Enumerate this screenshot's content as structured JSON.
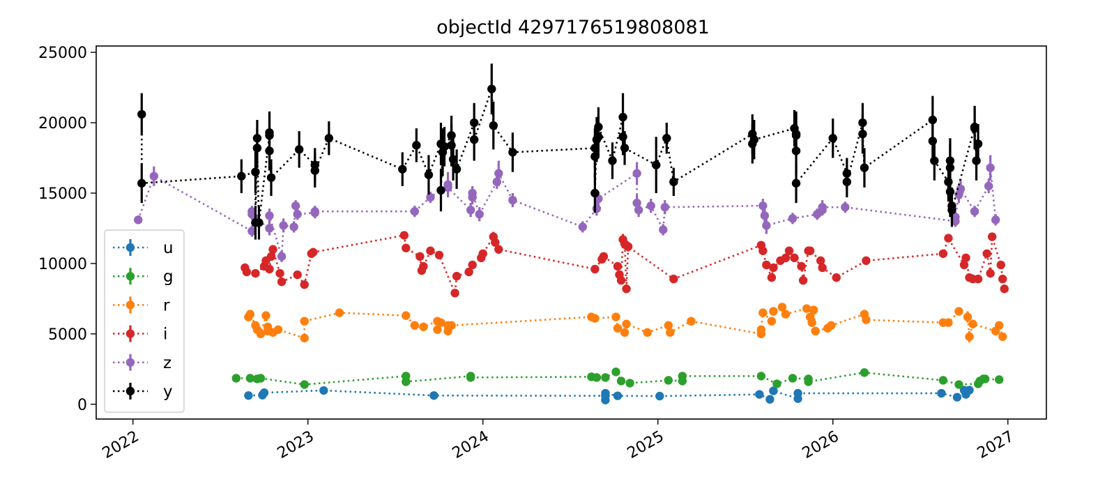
{
  "chart_data": {
    "type": "scatter",
    "title": "objectId 4297176519808081",
    "xlabel": "",
    "ylabel": "",
    "xlim": [
      2021.79,
      2027.22
    ],
    "ylim": [
      -1050,
      25450
    ],
    "grid": false,
    "legend_position": "lower-left",
    "x_ticks": [
      2022,
      2023,
      2024,
      2025,
      2026,
      2027
    ],
    "x_tick_labels": [
      "2022",
      "2023",
      "2024",
      "2025",
      "2026",
      "2027"
    ],
    "y_ticks": [
      0,
      5000,
      10000,
      15000,
      20000,
      25000
    ],
    "y_tick_labels": [
      "0",
      "5000",
      "10000",
      "15000",
      "20000",
      "25000"
    ],
    "series": [
      {
        "name": "u",
        "color": "#1f77b4",
        "x": [
          2022.66,
          2022.74,
          2022.75,
          2023.09,
          2023.72,
          2024.7,
          2024.7,
          2024.7,
          2024.77,
          2025.01,
          2025.58,
          2025.64,
          2025.66,
          2025.8,
          2025.8,
          2026.62,
          2026.71,
          2026.75,
          2026.76,
          2026.78
        ],
        "y": [
          620,
          650,
          820,
          980,
          620,
          600,
          300,
          780,
          600,
          580,
          700,
          350,
          950,
          400,
          780,
          780,
          500,
          1000,
          700,
          1000
        ],
        "err": [
          140,
          140,
          160,
          150,
          130,
          160,
          200,
          160,
          150,
          140,
          150,
          200,
          160,
          160,
          160,
          160,
          170,
          170,
          160,
          160
        ]
      },
      {
        "name": "g",
        "color": "#2ca02c",
        "x": [
          2022.59,
          2022.67,
          2022.71,
          2022.73,
          2022.98,
          2023.56,
          2023.56,
          2023.93,
          2023.93,
          2024.62,
          2024.65,
          2024.7,
          2024.76,
          2024.79,
          2024.84,
          2025.06,
          2025.14,
          2025.14,
          2025.59,
          2025.68,
          2025.77,
          2025.86,
          2025.86,
          2026.18,
          2026.63,
          2026.72,
          2026.83,
          2026.84,
          2026.86,
          2026.87,
          2026.95
        ],
        "y": [
          1850,
          1850,
          1800,
          1850,
          1400,
          2000,
          1600,
          2000,
          1900,
          1950,
          1900,
          1900,
          2300,
          1650,
          1500,
          1700,
          1650,
          2000,
          2000,
          1450,
          1850,
          1800,
          1600,
          2250,
          1700,
          1400,
          1450,
          1650,
          1800,
          1800,
          1750
        ],
        "err": [
          150,
          150,
          150,
          150,
          230,
          250,
          150,
          200,
          150,
          150,
          150,
          150,
          180,
          150,
          150,
          150,
          150,
          150,
          150,
          150,
          150,
          150,
          150,
          150,
          150,
          150,
          150,
          150,
          150,
          150,
          150
        ]
      },
      {
        "name": "r",
        "color": "#ff7f0e",
        "x": [
          2022.66,
          2022.67,
          2022.7,
          2022.71,
          2022.73,
          2022.76,
          2022.77,
          2022.77,
          2022.8,
          2022.83,
          2022.98,
          2022.98,
          2023.18,
          2023.56,
          2023.61,
          2023.66,
          2023.74,
          2023.74,
          2023.76,
          2023.8,
          2023.8,
          2023.82,
          2024.62,
          2024.64,
          2024.76,
          2024.77,
          2024.81,
          2024.82,
          2024.94,
          2025.06,
          2025.07,
          2025.19,
          2025.59,
          2025.59,
          2025.6,
          2025.65,
          2025.66,
          2025.71,
          2025.73,
          2025.85,
          2025.87,
          2025.88,
          2025.89,
          2025.9,
          2025.97,
          2025.99,
          2026.18,
          2026.19,
          2026.63,
          2026.66,
          2026.72,
          2026.77,
          2026.78,
          2026.8,
          2026.93,
          2026.95,
          2026.97
        ],
        "y": [
          6200,
          6400,
          5600,
          5300,
          5000,
          6300,
          5500,
          5200,
          5100,
          5300,
          4700,
          5900,
          6500,
          6300,
          5600,
          5500,
          5900,
          5300,
          5800,
          5200,
          5600,
          5600,
          6200,
          6100,
          6200,
          5400,
          5100,
          5700,
          5100,
          5600,
          5100,
          5900,
          5000,
          5300,
          6500,
          5900,
          6600,
          6900,
          6400,
          6800,
          6200,
          5800,
          6700,
          5200,
          5400,
          5600,
          6400,
          6000,
          5800,
          5800,
          6600,
          6200,
          4800,
          5700,
          5200,
          5600,
          4800
        ],
        "err": [
          200,
          200,
          300,
          200,
          200,
          200,
          200,
          200,
          200,
          200,
          300,
          200,
          200,
          200,
          200,
          200,
          200,
          200,
          200,
          200,
          300,
          200,
          200,
          200,
          200,
          200,
          200,
          200,
          200,
          200,
          200,
          200,
          300,
          200,
          200,
          300,
          300,
          200,
          200,
          200,
          300,
          200,
          200,
          200,
          200,
          200,
          200,
          200,
          200,
          200,
          200,
          400,
          400,
          200,
          200,
          200,
          200
        ]
      },
      {
        "name": "i",
        "color": "#d62728",
        "x": [
          2022.64,
          2022.65,
          2022.7,
          2022.75,
          2022.76,
          2022.78,
          2022.79,
          2022.8,
          2022.84,
          2022.85,
          2022.94,
          2022.98,
          2023.02,
          2023.03,
          2023.55,
          2023.56,
          2023.64,
          2023.65,
          2023.66,
          2023.7,
          2023.75,
          2023.84,
          2023.85,
          2023.92,
          2023.94,
          2023.99,
          2024.0,
          2024.06,
          2024.07,
          2024.09,
          2024.64,
          2024.68,
          2024.69,
          2024.77,
          2024.78,
          2024.79,
          2024.8,
          2024.81,
          2024.82,
          2024.83,
          2025.09,
          2025.59,
          2025.6,
          2025.62,
          2025.65,
          2025.66,
          2025.7,
          2025.73,
          2025.75,
          2025.78,
          2025.82,
          2025.83,
          2025.86,
          2025.87,
          2025.93,
          2025.94,
          2026.02,
          2026.19,
          2026.63,
          2026.66,
          2026.75,
          2026.76,
          2026.78,
          2026.8,
          2026.83,
          2026.88,
          2026.9,
          2026.91,
          2026.96,
          2026.97,
          2026.98
        ],
        "y": [
          9700,
          9400,
          9300,
          9800,
          10200,
          9600,
          10500,
          11000,
          9300,
          8700,
          9200,
          8500,
          10700,
          10800,
          12000,
          11100,
          10500,
          9500,
          9800,
          10900,
          10600,
          7900,
          9100,
          9400,
          9900,
          10400,
          10700,
          11900,
          11500,
          11000,
          9600,
          10300,
          10500,
          9800,
          9200,
          8800,
          11700,
          11400,
          8200,
          11200,
          8900,
          11300,
          10900,
          9900,
          9000,
          9700,
          10200,
          10400,
          10900,
          10400,
          9800,
          8800,
          10900,
          10900,
          10200,
          9700,
          9000,
          10200,
          10700,
          11800,
          9900,
          10400,
          9000,
          8900,
          8900,
          10700,
          9300,
          11900,
          9900,
          8900,
          8200
        ],
        "err": [
          250,
          250,
          250,
          250,
          250,
          250,
          300,
          300,
          250,
          250,
          250,
          250,
          300,
          300,
          250,
          250,
          250,
          250,
          250,
          250,
          250,
          250,
          250,
          250,
          250,
          250,
          250,
          350,
          300,
          300,
          250,
          250,
          250,
          250,
          300,
          300,
          400,
          400,
          250,
          350,
          250,
          250,
          250,
          250,
          250,
          250,
          250,
          250,
          250,
          250,
          250,
          250,
          250,
          250,
          250,
          250,
          250,
          250,
          250,
          300,
          250,
          250,
          250,
          250,
          250,
          250,
          250,
          300,
          250,
          250,
          250
        ]
      },
      {
        "name": "z",
        "color": "#9467bd",
        "x": [
          2022.03,
          2022.12,
          2022.68,
          2022.68,
          2022.68,
          2022.7,
          2022.78,
          2022.78,
          2022.85,
          2022.86,
          2022.92,
          2022.93,
          2022.94,
          2023.04,
          2023.04,
          2023.61,
          2023.7,
          2023.8,
          2023.8,
          2023.93,
          2023.94,
          2023.94,
          2023.98,
          2024.08,
          2024.09,
          2024.17,
          2024.57,
          2024.65,
          2024.66,
          2024.88,
          2024.88,
          2024.89,
          2024.96,
          2025.03,
          2025.04,
          2025.6,
          2025.61,
          2025.62,
          2025.77,
          2025.91,
          2025.94,
          2025.94,
          2026.07,
          2026.7,
          2026.7,
          2026.72,
          2026.73,
          2026.81,
          2026.89,
          2026.9,
          2026.93
        ],
        "y": [
          13100,
          16200,
          12300,
          13500,
          13700,
          13200,
          12500,
          13400,
          10500,
          12700,
          12600,
          14100,
          13500,
          13600,
          13700,
          13700,
          14700,
          15600,
          15400,
          13800,
          14700,
          15000,
          13500,
          15800,
          16400,
          14500,
          12600,
          13900,
          14600,
          16400,
          14300,
          13800,
          14100,
          12400,
          14000,
          14100,
          13400,
          12700,
          13200,
          13500,
          13800,
          14000,
          14000,
          13000,
          13300,
          14900,
          15300,
          13700,
          15500,
          16800,
          13100
        ],
        "err": [
          300,
          700,
          400,
          400,
          400,
          400,
          500,
          500,
          400,
          500,
          400,
          400,
          400,
          400,
          400,
          400,
          400,
          900,
          500,
          500,
          500,
          500,
          500,
          500,
          900,
          500,
          400,
          500,
          500,
          800,
          600,
          500,
          500,
          400,
          500,
          500,
          500,
          600,
          400,
          400,
          400,
          500,
          400,
          400,
          400,
          600,
          700,
          400,
          500,
          900,
          400
        ]
      },
      {
        "name": "y",
        "color": "#000000",
        "x": [
          2022.05,
          2022.05,
          2022.62,
          2022.7,
          2022.7,
          2022.71,
          2022.71,
          2022.72,
          2022.78,
          2022.78,
          2022.78,
          2022.79,
          2022.95,
          2023.04,
          2023.04,
          2023.12,
          2023.54,
          2023.62,
          2023.69,
          2023.76,
          2023.76,
          2023.77,
          2023.78,
          2023.82,
          2023.82,
          2023.83,
          2023.85,
          2023.95,
          2023.95,
          2024.05,
          2024.06,
          2024.17,
          2024.64,
          2024.64,
          2024.64,
          2024.65,
          2024.66,
          2024.66,
          2024.74,
          2024.8,
          2024.8,
          2024.81,
          2024.99,
          2025.05,
          2025.09,
          2025.54,
          2025.54,
          2025.55,
          2025.78,
          2025.79,
          2025.79,
          2025.79,
          2025.79,
          2026.0,
          2026.08,
          2026.08,
          2026.17,
          2026.17,
          2026.18,
          2026.57,
          2026.57,
          2026.58,
          2026.66,
          2026.67,
          2026.67,
          2026.67,
          2026.68,
          2026.68,
          2026.81,
          2026.81,
          2026.82,
          2026.83
        ],
        "y": [
          20600,
          15700,
          16200,
          16500,
          12900,
          18900,
          18200,
          12900,
          19100,
          19300,
          18000,
          16100,
          18100,
          17000,
          16600,
          18900,
          16700,
          18400,
          16300,
          18500,
          15200,
          17900,
          18300,
          19100,
          18400,
          17400,
          16700,
          20000,
          18800,
          22400,
          19800,
          17900,
          18200,
          17600,
          15000,
          18800,
          19000,
          19700,
          17300,
          20400,
          19000,
          18200,
          17000,
          18900,
          15800,
          19200,
          18500,
          18800,
          19600,
          19100,
          19200,
          18000,
          15700,
          18900,
          16400,
          15800,
          20000,
          19200,
          16800,
          20200,
          18700,
          17300,
          15800,
          16800,
          17300,
          15100,
          14100,
          13800,
          19700,
          19600,
          17300,
          18500
        ],
        "err": [
          1500,
          1400,
          1200,
          1500,
          1200,
          1300,
          1400,
          1200,
          1600,
          1500,
          1400,
          1300,
          1300,
          1200,
          1200,
          1200,
          1200,
          1200,
          1400,
          1500,
          1500,
          1700,
          1400,
          1400,
          1500,
          1500,
          1400,
          1400,
          1500,
          1800,
          1700,
          1400,
          1400,
          1500,
          1400,
          1600,
          1500,
          1400,
          1300,
          1700,
          1300,
          1200,
          2000,
          1100,
          1000,
          1400,
          1400,
          1400,
          1300,
          1500,
          1600,
          1600,
          1400,
          1400,
          1100,
          1100,
          1400,
          1400,
          1400,
          1700,
          1400,
          1400,
          1400,
          1700,
          1600,
          1800,
          1300,
          1200,
          1500,
          1500,
          1400,
          1400
        ]
      }
    ]
  }
}
